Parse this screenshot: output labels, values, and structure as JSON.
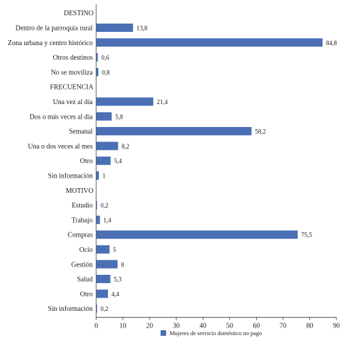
{
  "chart_data": {
    "type": "bar",
    "orientation": "horizontal",
    "xlim": [
      0,
      90
    ],
    "x_ticks": [
      "0",
      "10",
      "20",
      "30",
      "40",
      "50",
      "60",
      "70",
      "80",
      "90"
    ],
    "bar_color": "#4a6fb5",
    "grid": false,
    "legend_position": "bottom-right",
    "sections": [
      {
        "title": "DESTINO",
        "rows": [
          {
            "label": "Dentro de la parroquia rural",
            "value": 13.8,
            "value_label": "13,8"
          },
          {
            "label": "Zona urbana y centro histórico",
            "value": 84.8,
            "value_label": "84,8"
          },
          {
            "label": "Otros destinos",
            "value": 0.6,
            "value_label": "0,6"
          },
          {
            "label": "No se moviliza",
            "value": 0.8,
            "value_label": "0,8"
          }
        ]
      },
      {
        "title": "FRECUENCIA",
        "rows": [
          {
            "label": "Una vez al día",
            "value": 21.4,
            "value_label": "21,4"
          },
          {
            "label": "Dos o más veces al día",
            "value": 5.8,
            "value_label": "5,8"
          },
          {
            "label": "Semanal",
            "value": 58.2,
            "value_label": "58,2"
          },
          {
            "label": "Una o dos veces al mes",
            "value": 8.2,
            "value_label": "8,2"
          },
          {
            "label": "Otro",
            "value": 5.4,
            "value_label": "5,4"
          },
          {
            "label": "Sin información",
            "value": 1,
            "value_label": "1"
          }
        ]
      },
      {
        "title": "MOTIVO",
        "rows": [
          {
            "label": "Estudio",
            "value": 0.2,
            "value_label": "0,2"
          },
          {
            "label": "Trabajo",
            "value": 1.4,
            "value_label": "1,4"
          },
          {
            "label": "Compras",
            "value": 75.5,
            "value_label": "75,5"
          },
          {
            "label": "Ocio",
            "value": 5,
            "value_label": "5"
          },
          {
            "label": "Gestión",
            "value": 8,
            "value_label": "8"
          },
          {
            "label": "Salud",
            "value": 5.3,
            "value_label": "5,3"
          },
          {
            "label": "Otro",
            "value": 4.4,
            "value_label": "4,4"
          },
          {
            "label": "Sin información",
            "value": 0.2,
            "value_label": "0,2"
          }
        ]
      }
    ],
    "series": [
      {
        "name": "Mujeres de servicio doméstico no pago"
      }
    ]
  }
}
